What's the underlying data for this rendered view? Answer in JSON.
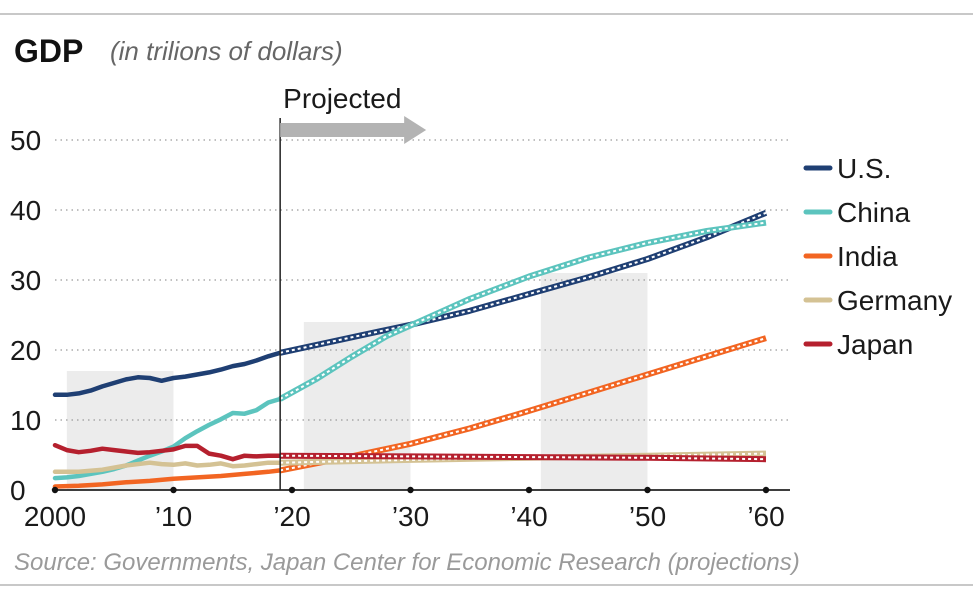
{
  "chart_data": {
    "type": "line",
    "title": "GDP",
    "subtitle": "(in trilions of dollars)",
    "annotation": "Projected",
    "source": "Source: Governments, Japan Center for Economic Research (projections)",
    "xlim": [
      2000,
      2060
    ],
    "ylim": [
      0,
      50
    ],
    "y_ticks": [
      0,
      10,
      20,
      30,
      40,
      50
    ],
    "x_ticks": [
      {
        "value": 2000,
        "label": "2000"
      },
      {
        "value": 2010,
        "label": "’10"
      },
      {
        "value": 2020,
        "label": "’20"
      },
      {
        "value": 2030,
        "label": "’30"
      },
      {
        "value": 2040,
        "label": "’40"
      },
      {
        "value": 2050,
        "label": "’50"
      },
      {
        "value": 2060,
        "label": "’60"
      }
    ],
    "projection_start": 2019,
    "shaded_ranges": [
      [
        2001,
        2010
      ],
      [
        2021,
        2030
      ],
      [
        2041,
        2050
      ]
    ],
    "legend_position": "right",
    "series": [
      {
        "name": "U.S.",
        "color": "#1f3f73",
        "actual": [
          [
            2000,
            13.6
          ],
          [
            2001,
            13.6
          ],
          [
            2002,
            13.8
          ],
          [
            2003,
            14.2
          ],
          [
            2004,
            14.8
          ],
          [
            2005,
            15.3
          ],
          [
            2006,
            15.8
          ],
          [
            2007,
            16.1
          ],
          [
            2008,
            16.0
          ],
          [
            2009,
            15.6
          ],
          [
            2010,
            16.0
          ],
          [
            2011,
            16.2
          ],
          [
            2012,
            16.5
          ],
          [
            2013,
            16.8
          ],
          [
            2014,
            17.2
          ],
          [
            2015,
            17.7
          ],
          [
            2016,
            18.0
          ],
          [
            2017,
            18.5
          ],
          [
            2018,
            19.1
          ],
          [
            2019,
            19.6
          ]
        ],
        "projected": [
          [
            2019,
            19.6
          ],
          [
            2025,
            21.8
          ],
          [
            2030,
            23.6
          ],
          [
            2035,
            25.6
          ],
          [
            2040,
            28.0
          ],
          [
            2045,
            30.4
          ],
          [
            2050,
            33.0
          ],
          [
            2055,
            36.1
          ],
          [
            2060,
            39.6
          ]
        ]
      },
      {
        "name": "China",
        "color": "#5cc4be",
        "actual": [
          [
            2000,
            1.7
          ],
          [
            2001,
            1.8
          ],
          [
            2002,
            2.0
          ],
          [
            2003,
            2.3
          ],
          [
            2004,
            2.6
          ],
          [
            2005,
            3.0
          ],
          [
            2006,
            3.5
          ],
          [
            2007,
            4.2
          ],
          [
            2008,
            4.9
          ],
          [
            2009,
            5.5
          ],
          [
            2010,
            6.2
          ],
          [
            2011,
            7.4
          ],
          [
            2012,
            8.4
          ],
          [
            2013,
            9.3
          ],
          [
            2014,
            10.1
          ],
          [
            2015,
            11.0
          ],
          [
            2016,
            10.9
          ],
          [
            2017,
            11.4
          ],
          [
            2018,
            12.5
          ],
          [
            2019,
            13.0
          ]
        ],
        "projected": [
          [
            2019,
            13.0
          ],
          [
            2022,
            15.8
          ],
          [
            2025,
            19.0
          ],
          [
            2028,
            22.0
          ],
          [
            2030,
            23.5
          ],
          [
            2035,
            27.3
          ],
          [
            2040,
            30.5
          ],
          [
            2045,
            33.2
          ],
          [
            2050,
            35.3
          ],
          [
            2055,
            37.0
          ],
          [
            2060,
            38.2
          ]
        ]
      },
      {
        "name": "India",
        "color": "#f26522",
        "actual": [
          [
            2000,
            0.5
          ],
          [
            2002,
            0.6
          ],
          [
            2004,
            0.8
          ],
          [
            2006,
            1.1
          ],
          [
            2008,
            1.3
          ],
          [
            2010,
            1.6
          ],
          [
            2012,
            1.8
          ],
          [
            2014,
            2.0
          ],
          [
            2016,
            2.3
          ],
          [
            2018,
            2.6
          ],
          [
            2019,
            2.8
          ]
        ],
        "projected": [
          [
            2019,
            2.8
          ],
          [
            2025,
            4.8
          ],
          [
            2030,
            6.6
          ],
          [
            2035,
            8.8
          ],
          [
            2040,
            11.3
          ],
          [
            2045,
            13.9
          ],
          [
            2050,
            16.5
          ],
          [
            2055,
            19.1
          ],
          [
            2060,
            21.7
          ]
        ]
      },
      {
        "name": "Germany",
        "color": "#d4c294",
        "actual": [
          [
            2000,
            2.6
          ],
          [
            2002,
            2.6
          ],
          [
            2004,
            2.9
          ],
          [
            2006,
            3.5
          ],
          [
            2008,
            3.9
          ],
          [
            2009,
            3.7
          ],
          [
            2010,
            3.6
          ],
          [
            2011,
            3.8
          ],
          [
            2012,
            3.5
          ],
          [
            2013,
            3.6
          ],
          [
            2014,
            3.8
          ],
          [
            2015,
            3.4
          ],
          [
            2016,
            3.5
          ],
          [
            2017,
            3.7
          ],
          [
            2018,
            3.9
          ],
          [
            2019,
            3.9
          ]
        ],
        "projected": [
          [
            2019,
            3.9
          ],
          [
            2030,
            4.3
          ],
          [
            2040,
            4.6
          ],
          [
            2050,
            4.9
          ],
          [
            2060,
            5.2
          ]
        ]
      },
      {
        "name": "Japan",
        "color": "#b5202e",
        "actual": [
          [
            2000,
            6.4
          ],
          [
            2001,
            5.7
          ],
          [
            2002,
            5.4
          ],
          [
            2003,
            5.6
          ],
          [
            2004,
            5.9
          ],
          [
            2005,
            5.7
          ],
          [
            2006,
            5.5
          ],
          [
            2007,
            5.3
          ],
          [
            2008,
            5.4
          ],
          [
            2009,
            5.6
          ],
          [
            2010,
            5.8
          ],
          [
            2011,
            6.3
          ],
          [
            2012,
            6.3
          ],
          [
            2013,
            5.2
          ],
          [
            2014,
            4.9
          ],
          [
            2015,
            4.4
          ],
          [
            2016,
            4.9
          ],
          [
            2017,
            4.8
          ],
          [
            2018,
            4.9
          ],
          [
            2019,
            4.9
          ]
        ],
        "projected": [
          [
            2019,
            4.9
          ],
          [
            2030,
            4.8
          ],
          [
            2040,
            4.7
          ],
          [
            2050,
            4.6
          ],
          [
            2060,
            4.4
          ]
        ]
      }
    ]
  }
}
